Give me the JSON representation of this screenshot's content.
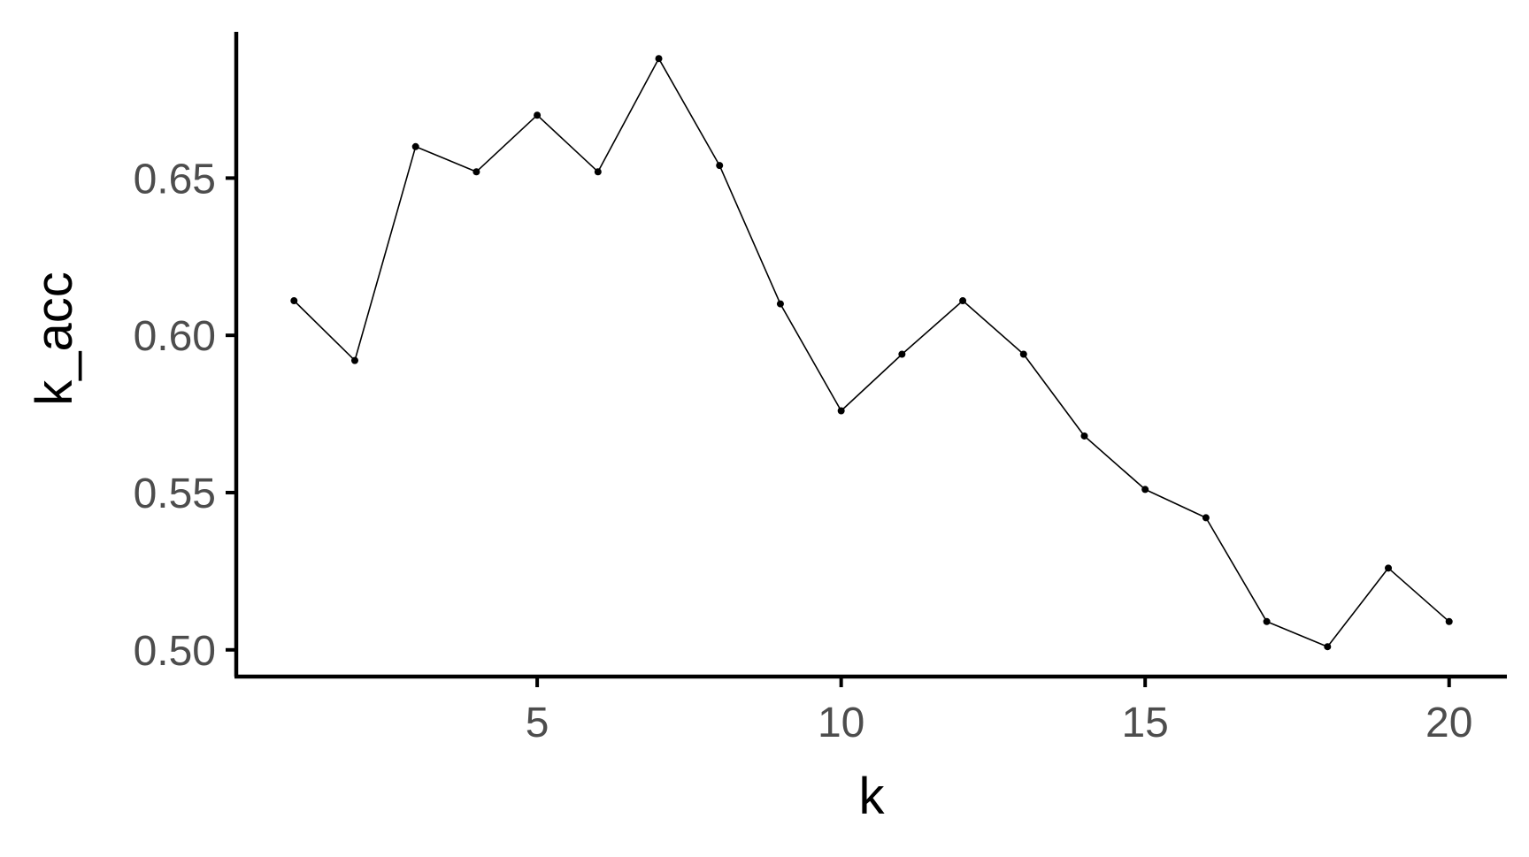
{
  "chart_data": {
    "type": "line",
    "title": "",
    "xlabel": "k",
    "ylabel": "k_acc",
    "xlim": [
      0.05,
      20.95
    ],
    "ylim": [
      0.4915,
      0.6965
    ],
    "xticks": [
      5,
      10,
      15,
      20
    ],
    "xtick_labels": [
      "5",
      "10",
      "15",
      "20"
    ],
    "yticks": [
      0.5,
      0.55,
      0.6,
      0.65
    ],
    "ytick_labels": [
      "0.50",
      "0.55",
      "0.60",
      "0.65"
    ],
    "grid": false,
    "legend": "none",
    "series": [
      {
        "x": [
          1,
          2,
          3,
          4,
          5,
          6,
          7,
          8,
          9,
          10,
          11,
          12,
          13,
          14,
          15,
          16,
          17,
          18,
          19,
          20
        ],
        "values": [
          0.611,
          0.592,
          0.66,
          0.652,
          0.67,
          0.652,
          0.688,
          0.654,
          0.61,
          0.576,
          0.594,
          0.611,
          0.594,
          0.568,
          0.551,
          0.542,
          0.509,
          0.501,
          0.526,
          0.509
        ]
      }
    ],
    "colors": {
      "line": "#000000",
      "axis": "#000000",
      "tick_text": "#4d4d4d"
    }
  }
}
